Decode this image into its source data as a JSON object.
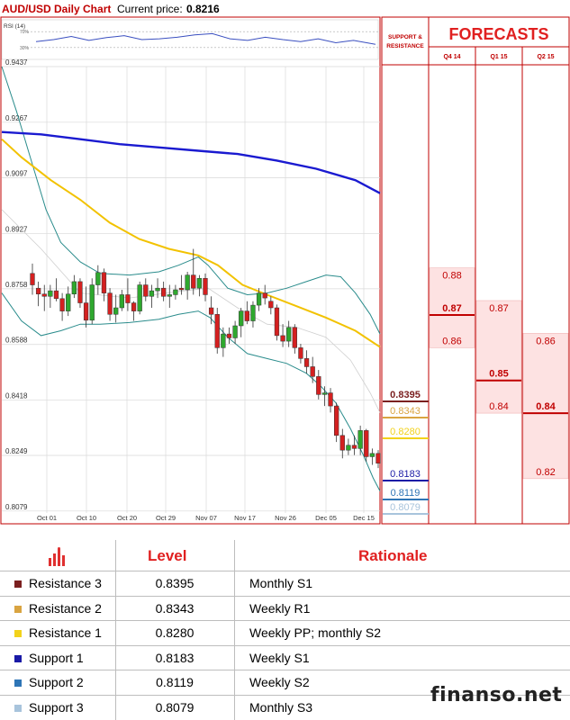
{
  "header": {
    "title": "AUD/USD Daily Chart",
    "price_label": "Current price:",
    "price_value": "0.8216"
  },
  "chart_data": {
    "type": "candlestick",
    "pair": "AUD/USD",
    "ylim": [
      0.804,
      0.9437
    ],
    "y_ticks": [
      "0.9437",
      "0.9267",
      "0.9097",
      "0.8927",
      "0.8758",
      "0.8588",
      "0.8418",
      "0.8249",
      "0.8079"
    ],
    "x_ticks": [
      "Oct 01",
      "Oct 10",
      "Oct 20",
      "Oct 29",
      "Nov 07",
      "Nov 17",
      "Nov 26",
      "Dec 05",
      "Dec 15"
    ],
    "grid": true,
    "rsi": {
      "label": "RSI (14)",
      "levels": [
        "70%",
        "30%"
      ]
    },
    "candles": [
      {
        "date": "Sep 29",
        "o": 0.8805,
        "h": 0.8835,
        "l": 0.874,
        "c": 0.877
      },
      {
        "date": "Sep 30",
        "o": 0.876,
        "h": 0.878,
        "l": 0.8705,
        "c": 0.8742
      },
      {
        "date": "Oct 01",
        "o": 0.8742,
        "h": 0.877,
        "l": 0.869,
        "c": 0.8735
      },
      {
        "date": "Oct 02",
        "o": 0.8735,
        "h": 0.877,
        "l": 0.87,
        "c": 0.8752
      },
      {
        "date": "Oct 03",
        "o": 0.8752,
        "h": 0.879,
        "l": 0.872,
        "c": 0.8728
      },
      {
        "date": "Oct 06",
        "o": 0.8728,
        "h": 0.8745,
        "l": 0.866,
        "c": 0.869
      },
      {
        "date": "Oct 07",
        "o": 0.869,
        "h": 0.8765,
        "l": 0.8675,
        "c": 0.8742
      },
      {
        "date": "Oct 08",
        "o": 0.8742,
        "h": 0.88,
        "l": 0.873,
        "c": 0.878
      },
      {
        "date": "Oct 09",
        "o": 0.878,
        "h": 0.879,
        "l": 0.87,
        "c": 0.8715
      },
      {
        "date": "Oct 10",
        "o": 0.8715,
        "h": 0.8765,
        "l": 0.864,
        "c": 0.8662
      },
      {
        "date": "Oct 13",
        "o": 0.8662,
        "h": 0.879,
        "l": 0.865,
        "c": 0.877
      },
      {
        "date": "Oct 14",
        "o": 0.877,
        "h": 0.883,
        "l": 0.874,
        "c": 0.8808
      },
      {
        "date": "Oct 15",
        "o": 0.8808,
        "h": 0.882,
        "l": 0.872,
        "c": 0.8745
      },
      {
        "date": "Oct 16",
        "o": 0.8745,
        "h": 0.876,
        "l": 0.866,
        "c": 0.868
      },
      {
        "date": "Oct 17",
        "o": 0.868,
        "h": 0.874,
        "l": 0.8655,
        "c": 0.87
      },
      {
        "date": "Oct 20",
        "o": 0.87,
        "h": 0.8755,
        "l": 0.869,
        "c": 0.874
      },
      {
        "date": "Oct 21",
        "o": 0.874,
        "h": 0.879,
        "l": 0.869,
        "c": 0.8715
      },
      {
        "date": "Oct 22",
        "o": 0.8715,
        "h": 0.872,
        "l": 0.866,
        "c": 0.869
      },
      {
        "date": "Oct 23",
        "o": 0.869,
        "h": 0.878,
        "l": 0.868,
        "c": 0.877
      },
      {
        "date": "Oct 24",
        "o": 0.877,
        "h": 0.879,
        "l": 0.872,
        "c": 0.8735
      },
      {
        "date": "Oct 27",
        "o": 0.8735,
        "h": 0.877,
        "l": 0.87,
        "c": 0.8752
      },
      {
        "date": "Oct 28",
        "o": 0.8752,
        "h": 0.879,
        "l": 0.873,
        "c": 0.876
      },
      {
        "date": "Oct 29",
        "o": 0.876,
        "h": 0.878,
        "l": 0.872,
        "c": 0.8735
      },
      {
        "date": "Oct 30",
        "o": 0.8735,
        "h": 0.877,
        "l": 0.87,
        "c": 0.874
      },
      {
        "date": "Oct 31",
        "o": 0.874,
        "h": 0.877,
        "l": 0.8725,
        "c": 0.8755
      },
      {
        "date": "Nov 03",
        "o": 0.876,
        "h": 0.88,
        "l": 0.874,
        "c": 0.8755
      },
      {
        "date": "Nov 04",
        "o": 0.8755,
        "h": 0.881,
        "l": 0.8725,
        "c": 0.88
      },
      {
        "date": "Nov 05",
        "o": 0.88,
        "h": 0.888,
        "l": 0.874,
        "c": 0.876
      },
      {
        "date": "Nov 06",
        "o": 0.876,
        "h": 0.88,
        "l": 0.8735,
        "c": 0.879
      },
      {
        "date": "Nov 07",
        "o": 0.879,
        "h": 0.8805,
        "l": 0.872,
        "c": 0.874
      },
      {
        "date": "Nov 10",
        "o": 0.87,
        "h": 0.8735,
        "l": 0.865,
        "c": 0.868
      },
      {
        "date": "Nov 11",
        "o": 0.868,
        "h": 0.87,
        "l": 0.856,
        "c": 0.8578
      },
      {
        "date": "Nov 12",
        "o": 0.8578,
        "h": 0.864,
        "l": 0.855,
        "c": 0.862
      },
      {
        "date": "Nov 13",
        "o": 0.862,
        "h": 0.864,
        "l": 0.859,
        "c": 0.8608
      },
      {
        "date": "Nov 14",
        "o": 0.8608,
        "h": 0.866,
        "l": 0.859,
        "c": 0.8645
      },
      {
        "date": "Nov 17",
        "o": 0.8645,
        "h": 0.87,
        "l": 0.861,
        "c": 0.869
      },
      {
        "date": "Nov 18",
        "o": 0.869,
        "h": 0.872,
        "l": 0.865,
        "c": 0.866
      },
      {
        "date": "Nov 19",
        "o": 0.866,
        "h": 0.872,
        "l": 0.864,
        "c": 0.8708
      },
      {
        "date": "Nov 20",
        "o": 0.8708,
        "h": 0.876,
        "l": 0.869,
        "c": 0.8745
      },
      {
        "date": "Nov 21",
        "o": 0.8745,
        "h": 0.877,
        "l": 0.871,
        "c": 0.873
      },
      {
        "date": "Nov 24",
        "o": 0.872,
        "h": 0.8735,
        "l": 0.868,
        "c": 0.87
      },
      {
        "date": "Nov 25",
        "o": 0.87,
        "h": 0.871,
        "l": 0.86,
        "c": 0.8615
      },
      {
        "date": "Nov 26",
        "o": 0.8615,
        "h": 0.865,
        "l": 0.858,
        "c": 0.8598
      },
      {
        "date": "Nov 27",
        "o": 0.8598,
        "h": 0.866,
        "l": 0.858,
        "c": 0.864
      },
      {
        "date": "Nov 28",
        "o": 0.864,
        "h": 0.865,
        "l": 0.856,
        "c": 0.8578
      },
      {
        "date": "Dec 01",
        "o": 0.8578,
        "h": 0.859,
        "l": 0.853,
        "c": 0.8545
      },
      {
        "date": "Dec 02",
        "o": 0.8545,
        "h": 0.857,
        "l": 0.85,
        "c": 0.852
      },
      {
        "date": "Dec 03",
        "o": 0.852,
        "h": 0.855,
        "l": 0.847,
        "c": 0.849
      },
      {
        "date": "Dec 04",
        "o": 0.849,
        "h": 0.851,
        "l": 0.842,
        "c": 0.8435
      },
      {
        "date": "Dec 05",
        "o": 0.8435,
        "h": 0.846,
        "l": 0.84,
        "c": 0.844
      },
      {
        "date": "Dec 08",
        "o": 0.844,
        "h": 0.8455,
        "l": 0.838,
        "c": 0.84
      },
      {
        "date": "Dec 09",
        "o": 0.84,
        "h": 0.841,
        "l": 0.829,
        "c": 0.831
      },
      {
        "date": "Dec 10",
        "o": 0.831,
        "h": 0.833,
        "l": 0.824,
        "c": 0.8265
      },
      {
        "date": "Dec 11",
        "o": 0.8265,
        "h": 0.83,
        "l": 0.825,
        "c": 0.828
      },
      {
        "date": "Dec 12",
        "o": 0.828,
        "h": 0.831,
        "l": 0.825,
        "c": 0.827
      },
      {
        "date": "Dec 15",
        "o": 0.827,
        "h": 0.834,
        "l": 0.825,
        "c": 0.8325
      },
      {
        "date": "Dec 16",
        "o": 0.8325,
        "h": 0.833,
        "l": 0.823,
        "c": 0.8245
      },
      {
        "date": "Dec 17",
        "o": 0.8245,
        "h": 0.827,
        "l": 0.822,
        "c": 0.8255
      },
      {
        "date": "Dec 18",
        "o": 0.8255,
        "h": 0.8265,
        "l": 0.821,
        "c": 0.8225
      }
    ],
    "levels": [
      {
        "name": "Resistance 3",
        "value": 0.8395,
        "color": "#7b2020"
      },
      {
        "name": "Resistance 2",
        "value": 0.8343,
        "color": "#d9a441"
      },
      {
        "name": "Resistance 1",
        "value": 0.828,
        "color": "#f2d21b"
      },
      {
        "name": "Support 1",
        "value": 0.8183,
        "color": "#1a1aa6"
      },
      {
        "name": "Support 2",
        "value": 0.8119,
        "color": "#2e75b6"
      },
      {
        "name": "Support 3",
        "value": 0.8079,
        "color": "#a8c4dc"
      }
    ],
    "level_labels": [
      "0.8395",
      "0.8343",
      "0.8280",
      "0.8183",
      "0.8119",
      "0.8079"
    ],
    "forecasts": {
      "title": "FORECASTS",
      "sr_header": "SUPPORT & RESISTANCE",
      "columns": [
        {
          "label": "Q4 14",
          "high": "0.88",
          "mid": "0.87",
          "low": "0.86"
        },
        {
          "label": "Q1 15",
          "high": "0.87",
          "mid": "0.85",
          "low": "0.84"
        },
        {
          "label": "Q2 15",
          "high": "0.86",
          "mid": "0.84",
          "low": "0.82"
        }
      ]
    },
    "ma_blue": [
      [
        0,
        0.9237
      ],
      [
        40,
        0.923
      ],
      [
        80,
        0.9215
      ],
      [
        120,
        0.92
      ],
      [
        160,
        0.919
      ],
      [
        200,
        0.918
      ],
      [
        240,
        0.917
      ],
      [
        280,
        0.915
      ],
      [
        320,
        0.9125
      ],
      [
        360,
        0.909
      ],
      [
        385,
        0.905
      ]
    ],
    "ma_yellow": [
      [
        0,
        0.9215
      ],
      [
        20,
        0.916
      ],
      [
        50,
        0.909
      ],
      [
        80,
        0.903
      ],
      [
        110,
        0.896
      ],
      [
        140,
        0.891
      ],
      [
        170,
        0.888
      ],
      [
        200,
        0.886
      ],
      [
        220,
        0.883
      ],
      [
        245,
        0.877
      ],
      [
        270,
        0.874
      ],
      [
        300,
        0.8705
      ],
      [
        330,
        0.867
      ],
      [
        360,
        0.863
      ],
      [
        385,
        0.858
      ]
    ],
    "boll_upper": [
      [
        0,
        0.9437
      ],
      [
        15,
        0.93
      ],
      [
        30,
        0.915
      ],
      [
        45,
        0.9
      ],
      [
        60,
        0.89
      ],
      [
        80,
        0.884
      ],
      [
        100,
        0.8805
      ],
      [
        130,
        0.88
      ],
      [
        160,
        0.881
      ],
      [
        180,
        0.883
      ],
      [
        200,
        0.8855
      ],
      [
        210,
        0.883
      ],
      [
        230,
        0.876
      ],
      [
        250,
        0.874
      ],
      [
        270,
        0.8745
      ],
      [
        290,
        0.876
      ],
      [
        310,
        0.878
      ],
      [
        330,
        0.88
      ],
      [
        345,
        0.8795
      ],
      [
        360,
        0.8745
      ],
      [
        375,
        0.868
      ],
      [
        385,
        0.862
      ]
    ],
    "boll_lower": [
      [
        0,
        0.8745
      ],
      [
        20,
        0.866
      ],
      [
        40,
        0.8615
      ],
      [
        60,
        0.863
      ],
      [
        80,
        0.865
      ],
      [
        100,
        0.865
      ],
      [
        130,
        0.8655
      ],
      [
        160,
        0.8665
      ],
      [
        180,
        0.868
      ],
      [
        200,
        0.869
      ],
      [
        212,
        0.867
      ],
      [
        230,
        0.861
      ],
      [
        250,
        0.856
      ],
      [
        270,
        0.8545
      ],
      [
        290,
        0.853
      ],
      [
        310,
        0.85
      ],
      [
        325,
        0.846
      ],
      [
        340,
        0.841
      ],
      [
        355,
        0.833
      ],
      [
        368,
        0.825
      ],
      [
        378,
        0.818
      ],
      [
        385,
        0.814
      ]
    ],
    "boll_mid": [
      [
        0,
        0.9
      ],
      [
        40,
        0.888
      ],
      [
        80,
        0.8745
      ],
      [
        130,
        0.873
      ],
      [
        180,
        0.875
      ],
      [
        210,
        0.876
      ],
      [
        240,
        0.87
      ],
      [
        270,
        0.865
      ],
      [
        300,
        0.864
      ],
      [
        330,
        0.861
      ],
      [
        355,
        0.854
      ],
      [
        375,
        0.844
      ],
      [
        385,
        0.838
      ]
    ],
    "rsi_series": [
      [
        0,
        45
      ],
      [
        20,
        50
      ],
      [
        40,
        58
      ],
      [
        60,
        48
      ],
      [
        80,
        55
      ],
      [
        100,
        60
      ],
      [
        120,
        50
      ],
      [
        140,
        52
      ],
      [
        160,
        56
      ],
      [
        180,
        62
      ],
      [
        200,
        65
      ],
      [
        220,
        52
      ],
      [
        240,
        48
      ],
      [
        260,
        56
      ],
      [
        280,
        50
      ],
      [
        300,
        45
      ],
      [
        320,
        52
      ],
      [
        340,
        42
      ],
      [
        360,
        48
      ],
      [
        385,
        38
      ]
    ]
  },
  "table": {
    "headers": {
      "level": "Level",
      "rationale": "Rationale"
    },
    "rows": [
      {
        "name": "Resistance 3",
        "level": "0.8395",
        "rationale": "Monthly S1",
        "color": "#7b2020"
      },
      {
        "name": "Resistance 2",
        "level": "0.8343",
        "rationale": "Weekly R1",
        "color": "#d9a441"
      },
      {
        "name": "Resistance 1",
        "level": "0.8280",
        "rationale": "Weekly PP; monthly S2",
        "color": "#f2d21b"
      },
      {
        "name": "Support 1",
        "level": "0.8183",
        "rationale": "Weekly S1",
        "color": "#1a1aa6"
      },
      {
        "name": "Support 2",
        "level": "0.8119",
        "rationale": "Weekly S2",
        "color": "#2e75b6"
      },
      {
        "name": "Support 3",
        "level": "0.8079",
        "rationale": "Monthly S3",
        "color": "#a8c4dc"
      }
    ]
  },
  "watermark": "finanso.net"
}
